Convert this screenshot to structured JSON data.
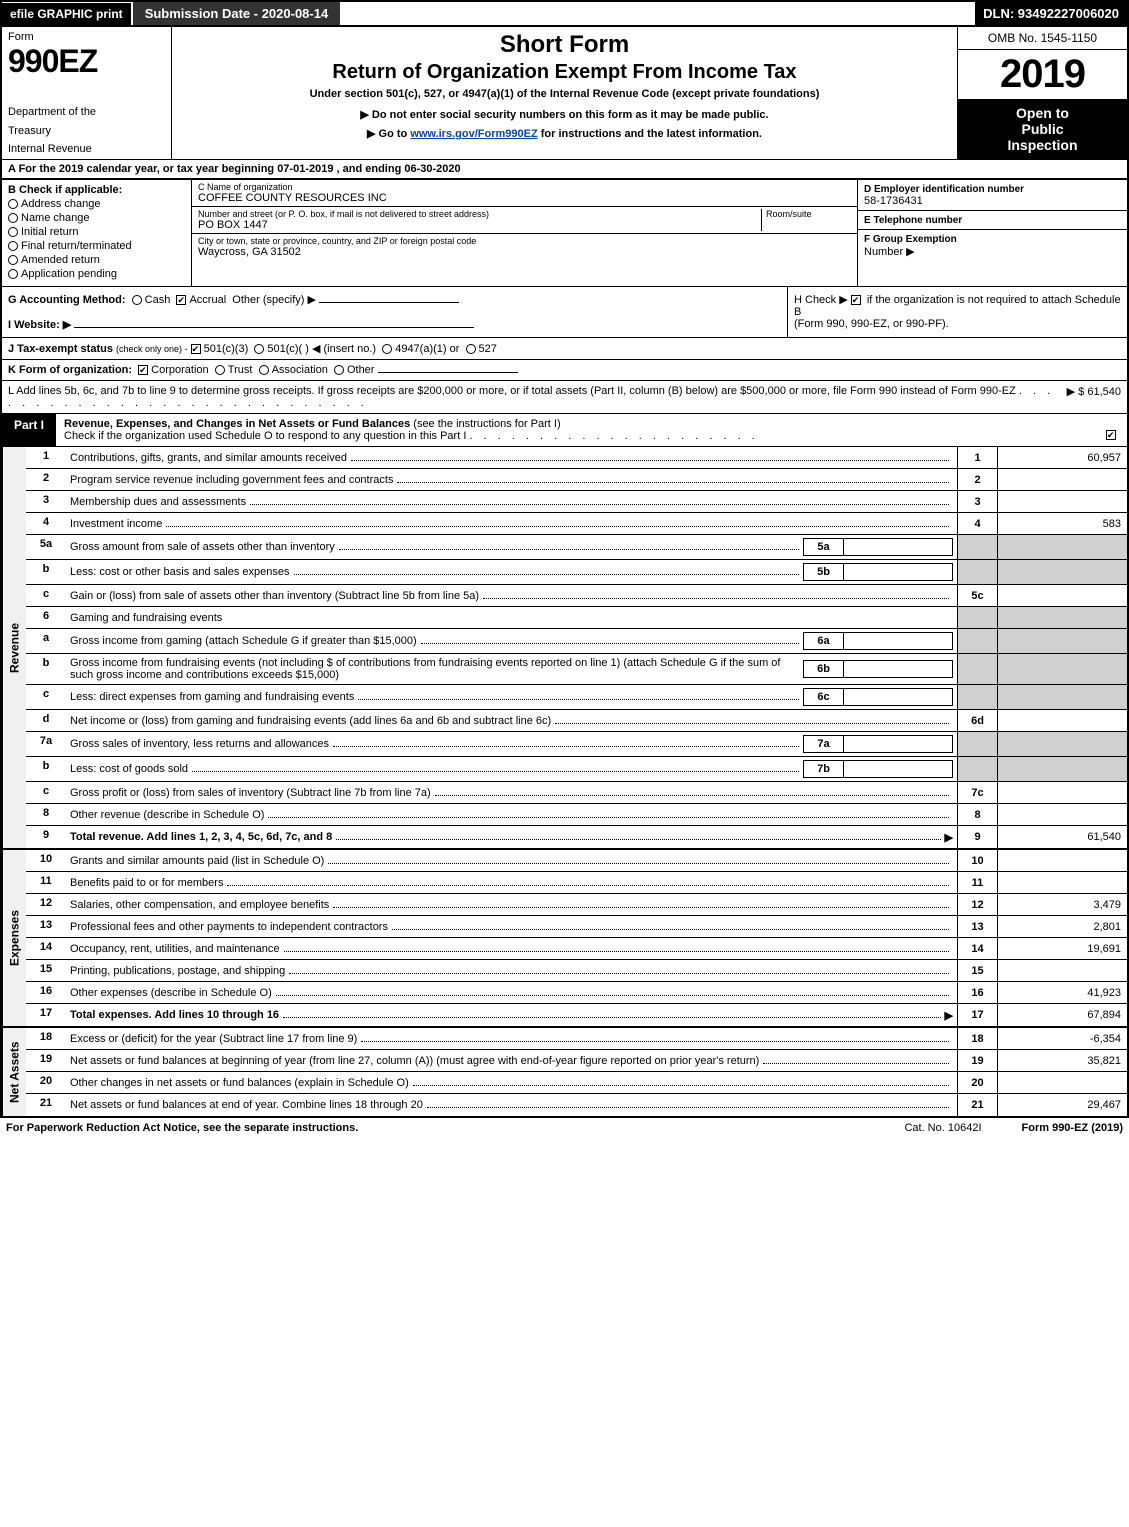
{
  "topbar": {
    "efile": "efile GRAPHIC print",
    "submission": "Submission Date - 2020-08-14",
    "dln": "DLN: 93492227006020"
  },
  "header": {
    "form": "Form",
    "form_no": "990EZ",
    "dept1": "Department of the",
    "dept2": "Treasury",
    "dept3": "Internal Revenue",
    "title1": "Short Form",
    "title2": "Return of Organization Exempt From Income Tax",
    "subtitle": "Under section 501(c), 527, or 4947(a)(1) of the Internal Revenue Code (except private foundations)",
    "note": "▶ Do not enter social security numbers on this form as it may be made public.",
    "link_prefix": "▶ Go to ",
    "link_text": "www.irs.gov/Form990EZ",
    "link_suffix": " for instructions and the latest information.",
    "omb": "OMB No. 1545-1150",
    "year": "2019",
    "insp1": "Open to",
    "insp2": "Public",
    "insp3": "Inspection"
  },
  "taxyear": "A  For the 2019 calendar year, or tax year beginning 07-01-2019 , and ending 06-30-2020",
  "boxB": {
    "label": "B  Check if applicable:",
    "opts": [
      "Address change",
      "Name change",
      "Initial return",
      "Final return/terminated",
      "Amended return",
      "Application pending"
    ]
  },
  "boxC": {
    "name_lbl": "C Name of organization",
    "name": "COFFEE COUNTY RESOURCES INC",
    "street_lbl": "Number and street (or P. O. box, if mail is not delivered to street address)",
    "room_lbl": "Room/suite",
    "street": "PO BOX 1447",
    "city_lbl": "City or town, state or province, country, and ZIP or foreign postal code",
    "city": "Waycross, GA  31502"
  },
  "boxD": {
    "ein_lbl": "D Employer identification number",
    "ein": "58-1736431",
    "tel_lbl": "E Telephone number",
    "grp_lbl": "F Group Exemption",
    "grp_lbl2": "Number   ▶"
  },
  "rowG": {
    "label": "G Accounting Method:",
    "cash": "Cash",
    "accrual": "Accrual",
    "other": "Other (specify) ▶"
  },
  "rowH": {
    "text1": "H  Check ▶",
    "text2": "if the organization is not required to attach Schedule B",
    "text3": "(Form 990, 990-EZ, or 990-PF)."
  },
  "rowI": {
    "label": "I Website: ▶"
  },
  "rowJ": {
    "prefix": "J Tax-exempt status",
    "note": "(check only one) -",
    "o1": "501(c)(3)",
    "o2": "501(c)(  ) ◀ (insert no.)",
    "o3": "4947(a)(1) or",
    "o4": "527"
  },
  "rowK": {
    "label": "K Form of organization:",
    "opts": [
      "Corporation",
      "Trust",
      "Association",
      "Other"
    ]
  },
  "rowL": {
    "text": "L Add lines 5b, 6c, and 7b to line 9 to determine gross receipts. If gross receipts are $200,000 or more, or if total assets (Part II, column (B) below) are $500,000 or more, file Form 990 instead of Form 990-EZ",
    "amount": "▶ $ 61,540"
  },
  "partI": {
    "tag": "Part I",
    "title": "Revenue, Expenses, and Changes in Net Assets or Fund Balances",
    "note": "(see the instructions for Part I)",
    "check": "Check if the organization used Schedule O to respond to any question in this Part I"
  },
  "sections": {
    "revenue": "Revenue",
    "expenses": "Expenses",
    "netassets": "Net Assets"
  },
  "lines": [
    {
      "n": "1",
      "d": "Contributions, gifts, grants, and similar amounts received",
      "no": "1",
      "v": "60,957"
    },
    {
      "n": "2",
      "d": "Program service revenue including government fees and contracts",
      "no": "2",
      "v": ""
    },
    {
      "n": "3",
      "d": "Membership dues and assessments",
      "no": "3",
      "v": ""
    },
    {
      "n": "4",
      "d": "Investment income",
      "no": "4",
      "v": "583"
    },
    {
      "n": "5a",
      "d": "Gross amount from sale of assets other than inventory",
      "sub": "5a",
      "grey": true
    },
    {
      "n": "b",
      "d": "Less: cost or other basis and sales expenses",
      "sub": "5b",
      "grey": true
    },
    {
      "n": "c",
      "d": "Gain or (loss) from sale of assets other than inventory (Subtract line 5b from line 5a)",
      "no": "5c",
      "v": ""
    },
    {
      "n": "6",
      "d": "Gaming and fundraising events",
      "grey": true
    },
    {
      "n": "a",
      "d": "Gross income from gaming (attach Schedule G if greater than $15,000)",
      "sub": "6a",
      "grey": true
    },
    {
      "n": "b",
      "d": "Gross income from fundraising events (not including $                            of contributions from fundraising events reported on line 1) (attach Schedule G if the sum of such gross income and contributions exceeds $15,000)",
      "sub": "6b",
      "grey": true
    },
    {
      "n": "c",
      "d": "Less: direct expenses from gaming and fundraising events",
      "sub": "6c",
      "grey": true
    },
    {
      "n": "d",
      "d": "Net income or (loss) from gaming and fundraising events (add lines 6a and 6b and subtract line 6c)",
      "no": "6d",
      "v": ""
    },
    {
      "n": "7a",
      "d": "Gross sales of inventory, less returns and allowances",
      "sub": "7a",
      "grey": true
    },
    {
      "n": "b",
      "d": "Less: cost of goods sold",
      "sub": "7b",
      "grey": true
    },
    {
      "n": "c",
      "d": "Gross profit or (loss) from sales of inventory (Subtract line 7b from line 7a)",
      "no": "7c",
      "v": ""
    },
    {
      "n": "8",
      "d": "Other revenue (describe in Schedule O)",
      "no": "8",
      "v": ""
    },
    {
      "n": "9",
      "d": "Total revenue. Add lines 1, 2, 3, 4, 5c, 6d, 7c, and 8",
      "no": "9",
      "v": "61,540",
      "bold": true,
      "arrow": true
    }
  ],
  "exp_lines": [
    {
      "n": "10",
      "d": "Grants and similar amounts paid (list in Schedule O)",
      "no": "10",
      "v": ""
    },
    {
      "n": "11",
      "d": "Benefits paid to or for members",
      "no": "11",
      "v": ""
    },
    {
      "n": "12",
      "d": "Salaries, other compensation, and employee benefits",
      "no": "12",
      "v": "3,479"
    },
    {
      "n": "13",
      "d": "Professional fees and other payments to independent contractors",
      "no": "13",
      "v": "2,801"
    },
    {
      "n": "14",
      "d": "Occupancy, rent, utilities, and maintenance",
      "no": "14",
      "v": "19,691"
    },
    {
      "n": "15",
      "d": "Printing, publications, postage, and shipping",
      "no": "15",
      "v": ""
    },
    {
      "n": "16",
      "d": "Other expenses (describe in Schedule O)",
      "no": "16",
      "v": "41,923"
    },
    {
      "n": "17",
      "d": "Total expenses. Add lines 10 through 16",
      "no": "17",
      "v": "67,894",
      "bold": true,
      "arrow": true
    }
  ],
  "na_lines": [
    {
      "n": "18",
      "d": "Excess or (deficit) for the year (Subtract line 17 from line 9)",
      "no": "18",
      "v": "-6,354"
    },
    {
      "n": "19",
      "d": "Net assets or fund balances at beginning of year (from line 27, column (A)) (must agree with end-of-year figure reported on prior year's return)",
      "no": "19",
      "v": "35,821"
    },
    {
      "n": "20",
      "d": "Other changes in net assets or fund balances (explain in Schedule O)",
      "no": "20",
      "v": ""
    },
    {
      "n": "21",
      "d": "Net assets or fund balances at end of year. Combine lines 18 through 20",
      "no": "21",
      "v": "29,467"
    }
  ],
  "footer": {
    "left": "For Paperwork Reduction Act Notice, see the separate instructions.",
    "mid": "Cat. No. 10642I",
    "right": "Form 990-EZ (2019)"
  }
}
